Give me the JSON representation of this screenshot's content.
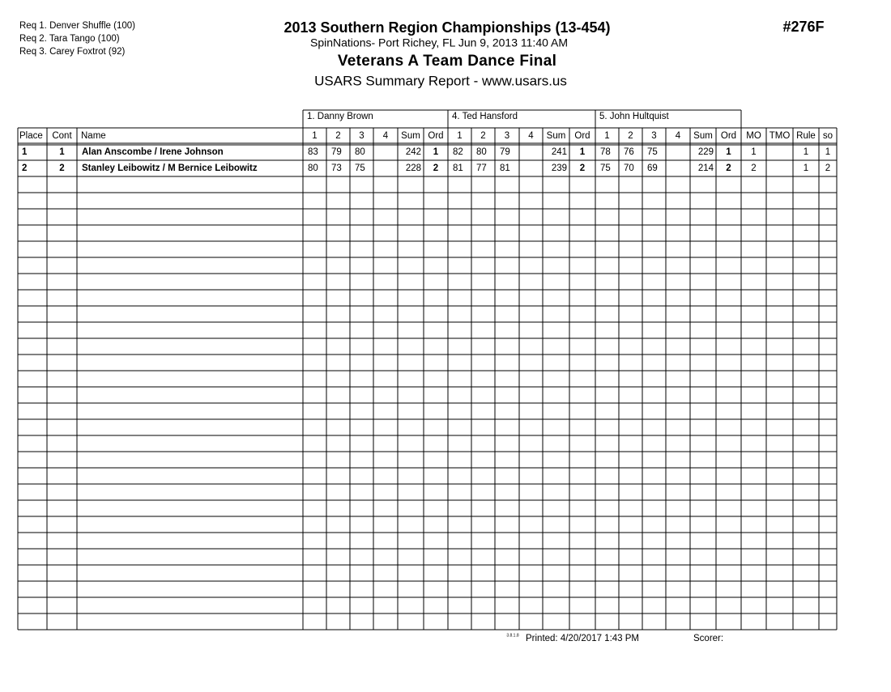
{
  "header": {
    "requirements": [
      "Req  1.  Denver Shuffle (100)",
      "Req  2.  Tara Tango (100)",
      "Req  3.  Carey Foxtrot (92)"
    ],
    "title": "2013 Southern Region Championships (13-454)",
    "location": "SpinNations- Port Richey, FL  Jun 9, 2013  11:40 AM",
    "event": "Veterans A Team Dance Final",
    "report": "USARS Summary Report - www.usars.us",
    "event_number": "#276F"
  },
  "table": {
    "judges": [
      "1.  Danny Brown",
      "4.  Ted Hansford",
      "5.  John Hultquist"
    ],
    "lead_columns": [
      "Place",
      "Cont",
      "Name"
    ],
    "judge_columns": [
      "1",
      "2",
      "3",
      "4",
      "Sum",
      "Ord"
    ],
    "tail_columns": [
      "MO",
      "TMO",
      "Rule",
      "so"
    ],
    "rows": [
      {
        "place": "1",
        "cont": "1",
        "name": "Alan Anscombe / Irene Johnson",
        "judges": [
          {
            "scores": [
              "83",
              "79",
              "80"
            ],
            "sum": "242",
            "ord": "1"
          },
          {
            "scores": [
              "82",
              "80",
              "79"
            ],
            "sum": "241",
            "ord": "1"
          },
          {
            "scores": [
              "78",
              "76",
              "75"
            ],
            "sum": "229",
            "ord": "1"
          }
        ],
        "mo": "1",
        "rule": "1",
        "so": "1"
      },
      {
        "place": "2",
        "cont": "2",
        "name": "Stanley Leibowitz / M Bernice Leibowitz",
        "judges": [
          {
            "scores": [
              "80",
              "73",
              "75"
            ],
            "sum": "228",
            "ord": "2"
          },
          {
            "scores": [
              "81",
              "77",
              "81"
            ],
            "sum": "239",
            "ord": "2"
          },
          {
            "scores": [
              "75",
              "70",
              "69"
            ],
            "sum": "214",
            "ord": "2"
          }
        ],
        "mo": "2",
        "rule": "1",
        "so": "2"
      }
    ]
  },
  "footer": {
    "version": "3.8.1.8",
    "printed": "Printed:  4/20/2017  1:43 PM",
    "scorer": "Scorer:"
  }
}
